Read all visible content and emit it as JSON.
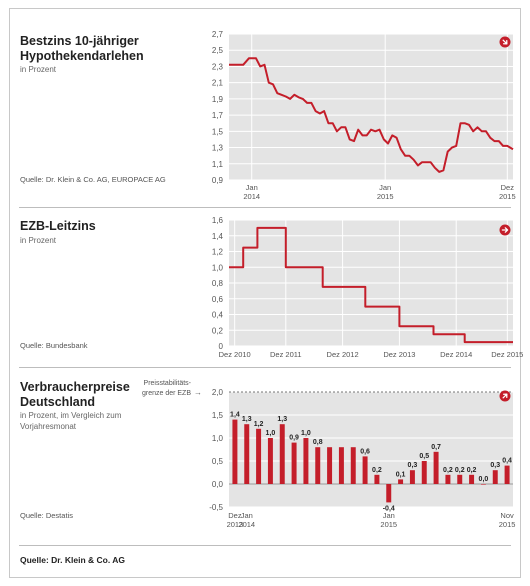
{
  "colors": {
    "line": "#c41e2a",
    "bar": "#c41e2a",
    "plot_bg": "#e4e4e4",
    "grid": "#ffffff",
    "axis_text": "#555555"
  },
  "footer": "Quelle: Dr. Klein & Co. AG",
  "panels": [
    {
      "title": "Bestzins 10-jähriger Hypothekendarlehen",
      "subtitle": "in Prozent",
      "source": "Quelle: Dr. Klein & Co. AG, EUROPACE AG",
      "icon": "arrow-down-right-icon"
    },
    {
      "title": "EZB-Leitzins",
      "subtitle": "in Prozent",
      "source": "Quelle: Bundesbank",
      "icon": "arrow-right-icon"
    },
    {
      "title": "Verbraucherpreise Deutschland",
      "subtitle": "in Prozent, im Vergleich zum Vorjahresmonat",
      "source": "Quelle: Destatis",
      "icon": "arrow-up-right-icon",
      "annotation": "Preisstabilitäts-grenze der EZB"
    }
  ],
  "chart_data": [
    {
      "type": "line",
      "title": "Bestzins 10-jähriger Hypothekendarlehen",
      "ylabel": "in Prozent",
      "ylim": [
        0.9,
        2.7
      ],
      "yticks": [
        "2,7",
        "2,5",
        "2,3",
        "2,1",
        "1,9",
        "1,7",
        "1,5",
        "1,3",
        "1,1",
        "0,9"
      ],
      "xticks": [
        {
          "label": "Jan",
          "sub": "2014",
          "x": 0.08
        },
        {
          "label": "Jan",
          "sub": "2015",
          "x": 0.55
        },
        {
          "label": "Dez",
          "sub": "2015",
          "x": 0.98
        }
      ],
      "x": [
        0,
        0.03,
        0.05,
        0.07,
        0.08,
        0.095,
        0.11,
        0.125,
        0.14,
        0.155,
        0.17,
        0.185,
        0.2,
        0.215,
        0.23,
        0.245,
        0.26,
        0.275,
        0.29,
        0.305,
        0.32,
        0.335,
        0.35,
        0.365,
        0.38,
        0.395,
        0.41,
        0.425,
        0.44,
        0.455,
        0.47,
        0.485,
        0.5,
        0.515,
        0.53,
        0.545,
        0.56,
        0.575,
        0.59,
        0.605,
        0.62,
        0.635,
        0.65,
        0.665,
        0.68,
        0.695,
        0.71,
        0.725,
        0.74,
        0.755,
        0.77,
        0.785,
        0.8,
        0.815,
        0.83,
        0.845,
        0.86,
        0.875,
        0.89,
        0.905,
        0.92,
        0.935,
        0.95,
        0.965,
        0.98,
        1.0
      ],
      "series": [
        {
          "values": [
            2.32,
            2.32,
            2.32,
            2.4,
            2.4,
            2.4,
            2.3,
            2.32,
            2.1,
            2.08,
            1.97,
            1.95,
            1.93,
            1.9,
            1.95,
            1.92,
            1.9,
            1.85,
            1.85,
            1.75,
            1.72,
            1.75,
            1.6,
            1.6,
            1.5,
            1.55,
            1.55,
            1.4,
            1.38,
            1.52,
            1.45,
            1.45,
            1.52,
            1.5,
            1.52,
            1.4,
            1.35,
            1.45,
            1.42,
            1.28,
            1.2,
            1.2,
            1.15,
            1.08,
            1.12,
            1.12,
            1.12,
            1.05,
            1.0,
            1.02,
            1.25,
            1.3,
            1.32,
            1.6,
            1.6,
            1.58,
            1.5,
            1.55,
            1.5,
            1.5,
            1.42,
            1.38,
            1.38,
            1.32,
            1.32,
            1.28
          ]
        }
      ]
    },
    {
      "type": "line",
      "title": "EZB-Leitzins",
      "ylabel": "in Prozent",
      "ylim": [
        0,
        1.6
      ],
      "yticks": [
        "1,6",
        "1,4",
        "1,2",
        "1,0",
        "0,8",
        "0,6",
        "0,4",
        "0,2",
        "0"
      ],
      "xticks": [
        {
          "label": "Dez 2010",
          "x": 0.02
        },
        {
          "label": "Dez 2011",
          "x": 0.2
        },
        {
          "label": "Dez 2012",
          "x": 0.4
        },
        {
          "label": "Dez 2013",
          "x": 0.6
        },
        {
          "label": "Dez 2014",
          "x": 0.8
        },
        {
          "label": "Dez 2015",
          "x": 0.98
        }
      ],
      "x": [
        0,
        0.05,
        0.05,
        0.1,
        0.1,
        0.2,
        0.2,
        0.33,
        0.33,
        0.48,
        0.48,
        0.6,
        0.6,
        0.72,
        0.72,
        0.83,
        0.83,
        1.0
      ],
      "series": [
        {
          "values": [
            1.0,
            1.0,
            1.25,
            1.25,
            1.5,
            1.5,
            1.0,
            1.0,
            0.75,
            0.75,
            0.5,
            0.5,
            0.25,
            0.25,
            0.15,
            0.15,
            0.05,
            0.05
          ]
        }
      ]
    },
    {
      "type": "bar",
      "title": "Verbraucherpreise Deutschland",
      "ylabel": "in Prozent, im Vergleich zum Vorjahresmonat",
      "ylim": [
        -0.5,
        2.0
      ],
      "reference_line": 2.0,
      "yticks": [
        "2,0",
        "1,5",
        "1,0",
        "0,5",
        "0,0",
        "-0,5"
      ],
      "xticks": [
        {
          "label": "Dez",
          "sub": "2013",
          "i": 0
        },
        {
          "label": "Jan",
          "sub": "2014",
          "i": 1
        },
        {
          "label": "Jan",
          "sub": "2015",
          "i": 13
        },
        {
          "label": "Nov",
          "sub": "2015",
          "i": 23
        }
      ],
      "values": [
        1.4,
        1.3,
        1.2,
        1.0,
        1.3,
        0.9,
        1.0,
        0.8,
        0.8,
        0.8,
        0.8,
        0.6,
        0.2,
        -0.4,
        0.1,
        0.3,
        0.5,
        0.7,
        0.2,
        0.2,
        0.2,
        0.0,
        0.3,
        0.4
      ],
      "data_labels": [
        "1,4",
        "1,3",
        "1,2",
        "1,0",
        "1,3",
        "0,9",
        "1,0",
        "0,8",
        "",
        "",
        "",
        "0,6",
        "0,2",
        "-0,4",
        "0,1",
        "0,3",
        "0,5",
        "0,7",
        "0,2",
        "0,2",
        "0,2",
        "0,0",
        "0,3",
        "0,4"
      ]
    }
  ]
}
